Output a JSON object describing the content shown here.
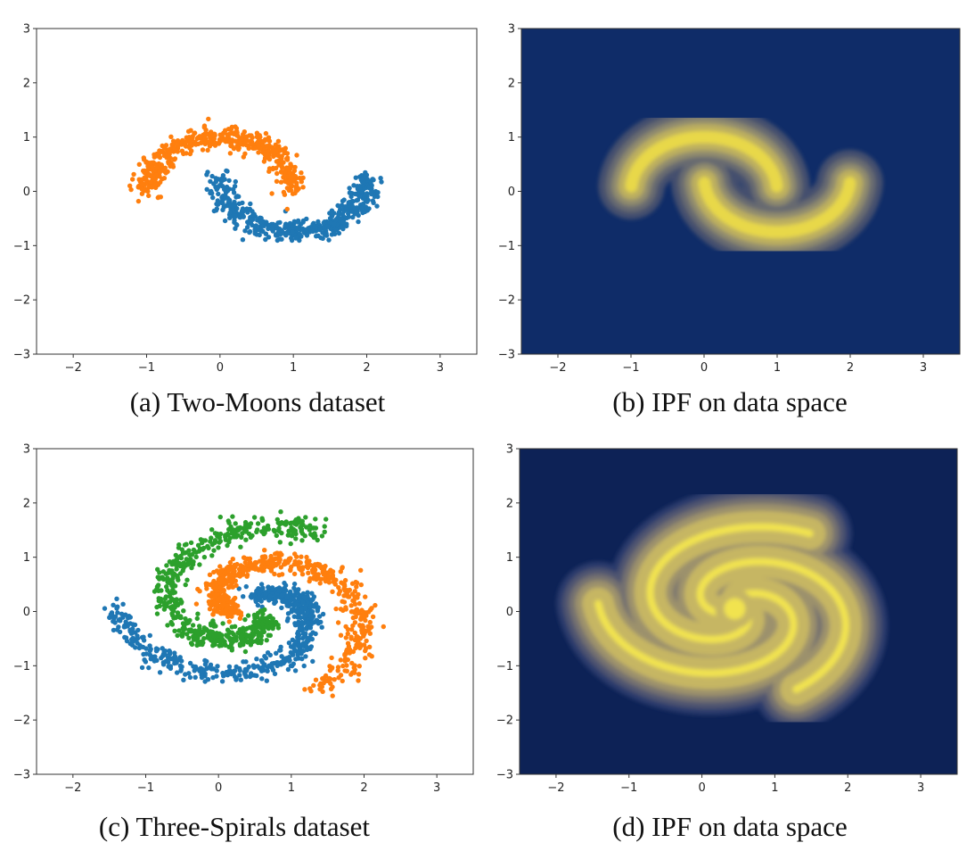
{
  "chart_data": [
    {
      "type": "scatter",
      "caption": "(a) Two-Moons dataset",
      "xlim": [
        -2.5,
        3.5
      ],
      "ylim": [
        -3,
        3
      ],
      "xticks": [
        -2,
        -1,
        0,
        1,
        2,
        3
      ],
      "yticks": [
        -3,
        -2,
        -1,
        0,
        1,
        2,
        3
      ],
      "grid": false,
      "series": [
        {
          "color": "#1f77b4",
          "shape": "lower-moon",
          "center": [
            1,
            0.25
          ],
          "radius": 1,
          "arc_degrees": [
            180,
            360
          ],
          "noise": 0.1,
          "n_points": 500
        },
        {
          "color": "#ff7f0e",
          "shape": "upper-moon",
          "center": [
            0,
            0
          ],
          "radius": 1,
          "arc_degrees": [
            0,
            180
          ],
          "noise": 0.1,
          "n_points": 500
        }
      ]
    },
    {
      "type": "heatmap",
      "caption": "(b) IPF on data space",
      "xlim": [
        -2.5,
        3.5
      ],
      "ylim": [
        -3,
        3
      ],
      "xticks": [
        -2,
        -1,
        0,
        1,
        2,
        3
      ],
      "yticks": [
        -3,
        -2,
        -1,
        0,
        1,
        2,
        3
      ],
      "colormap": "cividis",
      "background": "#0f2c68",
      "levels": [
        "#0f2c68",
        "#44506e",
        "#686a70",
        "#908b6e",
        "#bcaf5e",
        "#e8d84a"
      ]
    },
    {
      "type": "scatter",
      "caption": "(c) Three-Spirals dataset",
      "xlim": [
        -2.5,
        3.5
      ],
      "ylim": [
        -3,
        3
      ],
      "xticks": [
        -2,
        -1,
        0,
        1,
        2,
        3
      ],
      "yticks": [
        -3,
        -2,
        -1,
        0,
        1,
        2,
        3
      ],
      "grid": false,
      "series": [
        {
          "color": "#1f77b4",
          "shape": "spiral",
          "arm_index": 0,
          "center": [
            0.45,
            0.05
          ],
          "n_points": 600
        },
        {
          "color": "#ff7f0e",
          "shape": "spiral",
          "arm_index": 1,
          "center": [
            0.45,
            0.05
          ],
          "n_points": 600
        },
        {
          "color": "#2ca02c",
          "shape": "spiral",
          "arm_index": 2,
          "center": [
            0.45,
            0.05
          ],
          "n_points": 600
        }
      ]
    },
    {
      "type": "heatmap",
      "caption": "(d) IPF on data space",
      "xlim": [
        -2.5,
        3.5
      ],
      "ylim": [
        -3,
        3
      ],
      "xticks": [
        -2,
        -1,
        0,
        1,
        2,
        3
      ],
      "yticks": [
        -3,
        -2,
        -1,
        0,
        1,
        2,
        3
      ],
      "colormap": "cividis",
      "background": "#0d2256",
      "levels": [
        "#0d2256",
        "#2a3a6c",
        "#4f5470",
        "#75716f",
        "#9c916c",
        "#c6b663",
        "#f1e34f"
      ]
    }
  ]
}
